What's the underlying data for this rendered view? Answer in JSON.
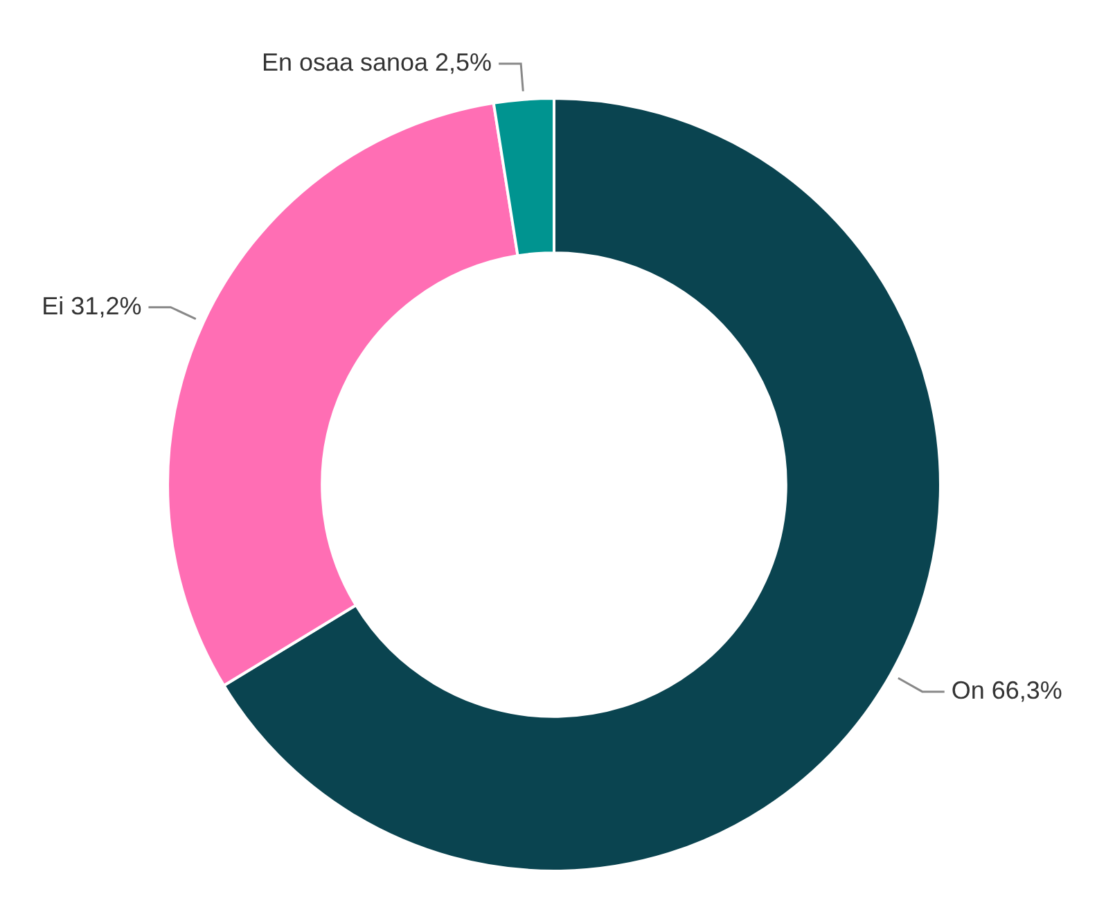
{
  "chart_data": {
    "type": "donut",
    "categories": [
      "On",
      "Ei",
      "En osaa sanoa"
    ],
    "values": [
      66.3,
      31.2,
      2.5
    ],
    "value_labels": [
      "66,3%",
      "31,2%",
      "2,5%"
    ],
    "colors": [
      "#0a4450",
      "#ff6eb4",
      "#009490"
    ],
    "legend": false
  }
}
